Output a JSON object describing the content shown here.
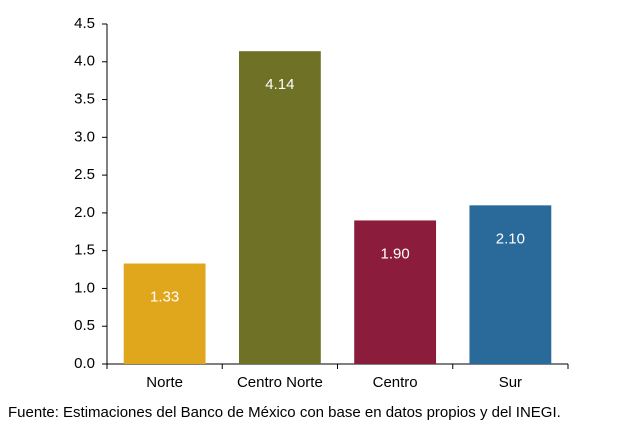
{
  "chart_data": {
    "type": "bar",
    "categories": [
      "Norte",
      "Centro Norte",
      "Centro",
      "Sur"
    ],
    "values": [
      1.33,
      4.14,
      1.9,
      2.1
    ],
    "value_labels": [
      "1.33",
      "4.14",
      "1.90",
      "2.10"
    ],
    "colors": [
      "#e1a71c",
      "#6e7126",
      "#8c1c3c",
      "#2a6a9a"
    ],
    "ylim": [
      0,
      4.5
    ],
    "yticks": [
      {
        "value": 0,
        "label": "0.0"
      },
      0.5,
      {
        "value": 1,
        "label": "1.0"
      },
      1.5,
      {
        "value": 2,
        "label": "2.0"
      },
      2.5,
      {
        "value": 3,
        "label": "3.0"
      },
      3.5,
      {
        "value": 4,
        "label": "4.0"
      },
      4.5
    ],
    "source": "Fuente: Estimaciones del Banco de México con base en datos propios y del INEGI."
  }
}
